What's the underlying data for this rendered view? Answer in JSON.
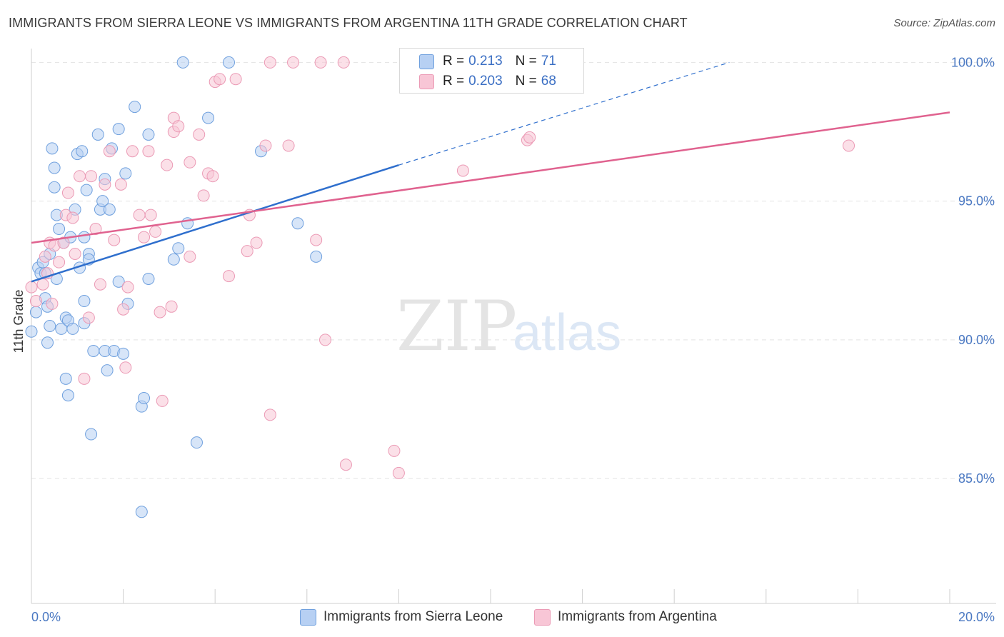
{
  "header": {
    "title": "IMMIGRANTS FROM SIERRA LEONE VS IMMIGRANTS FROM ARGENTINA 11TH GRADE CORRELATION CHART",
    "source": "Source: ZipAtlas.com"
  },
  "watermark": {
    "zip": "ZIP",
    "atlas": "atlas"
  },
  "legend": {
    "rows": [
      {
        "r_label": "R =",
        "r_value": "0.213",
        "n_label": "N =",
        "n_value": "71"
      },
      {
        "r_label": "R =",
        "r_value": "0.203",
        "n_label": "N =",
        "n_value": "68"
      }
    ],
    "bottom": [
      "Immigrants from Sierra Leone",
      "Immigrants from Argentina"
    ]
  },
  "colors": {
    "series1_fill": "#b7d0f3",
    "series1_stroke": "#6fa0de",
    "series1_line": "#2f6fcd",
    "series2_fill": "#f8c6d6",
    "series2_stroke": "#eb9ab5",
    "series2_line": "#e0628f",
    "tick_text": "#4a78c2",
    "grid": "#e3e3e3"
  },
  "chart_data": {
    "type": "scatter",
    "ylabel": "11th Grade",
    "xlabel": "",
    "x_tick_labels": [
      "0.0%",
      "20.0%"
    ],
    "y_tick_labels": [
      "100.0%",
      "95.0%",
      "90.0%",
      "85.0%"
    ],
    "xlim": [
      0,
      20
    ],
    "ylim": [
      80.5,
      100.5
    ],
    "y_ticks": [
      100,
      95,
      90,
      85
    ],
    "grid": true,
    "legend_position": "top-center",
    "series": [
      {
        "name": "Immigrants from Sierra Leone",
        "regression": {
          "x_start": 0.0,
          "y_start": 92.1,
          "x_solid_end": 8.0,
          "y_solid_end": 96.3,
          "x_dash_end": 15.2,
          "y_dash_end": 100.0
        },
        "points": [
          [
            0.0,
            90.3
          ],
          [
            0.1,
            91.0
          ],
          [
            0.15,
            92.6
          ],
          [
            0.2,
            92.4
          ],
          [
            0.25,
            92.8
          ],
          [
            0.3,
            91.5
          ],
          [
            0.3,
            92.4
          ],
          [
            0.35,
            91.2
          ],
          [
            0.35,
            89.9
          ],
          [
            0.4,
            90.5
          ],
          [
            0.4,
            93.1
          ],
          [
            0.45,
            96.9
          ],
          [
            0.5,
            96.2
          ],
          [
            0.5,
            95.5
          ],
          [
            0.55,
            92.2
          ],
          [
            0.55,
            94.5
          ],
          [
            0.6,
            94.0
          ],
          [
            0.7,
            93.5
          ],
          [
            0.65,
            90.4
          ],
          [
            0.75,
            90.8
          ],
          [
            0.75,
            88.6
          ],
          [
            0.8,
            90.7
          ],
          [
            0.8,
            88.0
          ],
          [
            0.85,
            93.7
          ],
          [
            0.9,
            90.4
          ],
          [
            0.95,
            94.7
          ],
          [
            1.0,
            96.7
          ],
          [
            1.05,
            92.6
          ],
          [
            1.1,
            96.8
          ],
          [
            1.15,
            91.4
          ],
          [
            1.15,
            90.6
          ],
          [
            1.15,
            93.7
          ],
          [
            1.2,
            95.4
          ],
          [
            1.25,
            93.1
          ],
          [
            1.25,
            92.9
          ],
          [
            1.3,
            86.6
          ],
          [
            1.35,
            89.6
          ],
          [
            1.45,
            97.4
          ],
          [
            1.5,
            94.7
          ],
          [
            1.55,
            95.0
          ],
          [
            1.6,
            95.8
          ],
          [
            1.6,
            89.6
          ],
          [
            1.65,
            88.9
          ],
          [
            1.7,
            94.7
          ],
          [
            1.75,
            96.9
          ],
          [
            1.8,
            89.6
          ],
          [
            1.9,
            97.6
          ],
          [
            1.9,
            92.1
          ],
          [
            2.0,
            89.5
          ],
          [
            2.05,
            96.0
          ],
          [
            2.1,
            91.3
          ],
          [
            2.25,
            98.4
          ],
          [
            2.4,
            83.8
          ],
          [
            2.4,
            87.6
          ],
          [
            2.45,
            87.9
          ],
          [
            2.55,
            92.2
          ],
          [
            2.55,
            97.4
          ],
          [
            3.1,
            92.9
          ],
          [
            3.2,
            93.3
          ],
          [
            3.4,
            94.2
          ],
          [
            3.6,
            86.3
          ],
          [
            3.3,
            100.0
          ],
          [
            3.85,
            98.0
          ],
          [
            4.3,
            100.0
          ],
          [
            5.0,
            96.8
          ],
          [
            5.8,
            94.2
          ],
          [
            6.2,
            93.0
          ]
        ]
      },
      {
        "name": "Immigrants from Argentina",
        "regression": {
          "x_start": 0.0,
          "y_start": 93.5,
          "x_end": 20.0,
          "y_end": 98.2
        },
        "points": [
          [
            0.0,
            91.9
          ],
          [
            0.1,
            91.4
          ],
          [
            0.25,
            92.0
          ],
          [
            0.3,
            93.0
          ],
          [
            0.35,
            92.4
          ],
          [
            0.4,
            93.5
          ],
          [
            0.45,
            91.3
          ],
          [
            0.5,
            93.4
          ],
          [
            0.6,
            92.8
          ],
          [
            0.7,
            93.5
          ],
          [
            0.75,
            94.5
          ],
          [
            0.8,
            95.3
          ],
          [
            0.9,
            94.4
          ],
          [
            0.95,
            93.1
          ],
          [
            1.05,
            95.9
          ],
          [
            1.15,
            88.6
          ],
          [
            1.25,
            90.8
          ],
          [
            1.3,
            95.9
          ],
          [
            1.4,
            94.0
          ],
          [
            1.5,
            92.0
          ],
          [
            1.6,
            95.6
          ],
          [
            1.7,
            96.8
          ],
          [
            1.8,
            93.6
          ],
          [
            1.95,
            95.6
          ],
          [
            2.0,
            91.1
          ],
          [
            2.05,
            89.0
          ],
          [
            2.1,
            91.9
          ],
          [
            2.2,
            96.8
          ],
          [
            2.35,
            94.5
          ],
          [
            2.45,
            93.7
          ],
          [
            2.55,
            96.8
          ],
          [
            2.6,
            94.5
          ],
          [
            2.7,
            93.9
          ],
          [
            2.8,
            91.0
          ],
          [
            2.85,
            87.8
          ],
          [
            2.95,
            96.3
          ],
          [
            3.05,
            91.2
          ],
          [
            3.1,
            98.0
          ],
          [
            3.1,
            97.5
          ],
          [
            3.2,
            97.7
          ],
          [
            3.45,
            93.0
          ],
          [
            3.45,
            96.4
          ],
          [
            3.65,
            97.4
          ],
          [
            3.75,
            95.2
          ],
          [
            3.85,
            96.0
          ],
          [
            3.95,
            95.9
          ],
          [
            4.0,
            99.3
          ],
          [
            4.1,
            99.4
          ],
          [
            4.3,
            92.3
          ],
          [
            4.45,
            99.4
          ],
          [
            4.7,
            93.2
          ],
          [
            4.75,
            94.5
          ],
          [
            4.9,
            93.5
          ],
          [
            5.1,
            97.0
          ],
          [
            5.2,
            100.0
          ],
          [
            5.2,
            87.3
          ],
          [
            5.6,
            97.0
          ],
          [
            5.7,
            100.0
          ],
          [
            6.2,
            93.6
          ],
          [
            6.3,
            100.0
          ],
          [
            6.4,
            90.0
          ],
          [
            6.8,
            100.0
          ],
          [
            6.85,
            85.5
          ],
          [
            7.9,
            86.0
          ],
          [
            8.0,
            85.2
          ],
          [
            8.2,
            100.0
          ],
          [
            9.4,
            96.1
          ],
          [
            10.8,
            97.2
          ],
          [
            10.85,
            97.3
          ],
          [
            17.8,
            97.0
          ]
        ]
      }
    ]
  }
}
